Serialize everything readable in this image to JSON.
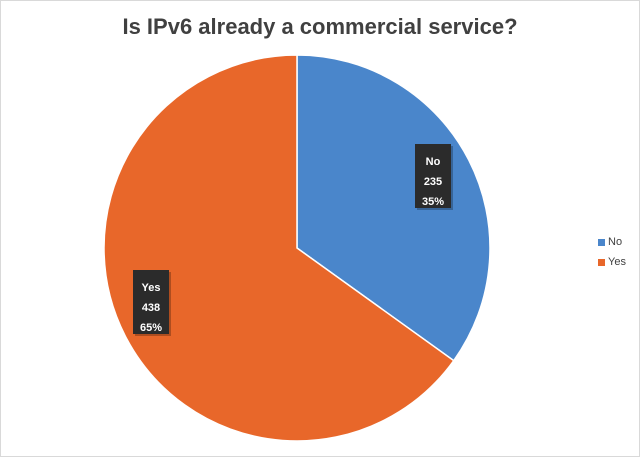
{
  "chart_data": {
    "type": "pie",
    "title": "Is IPv6 already a commercial service?",
    "slices": [
      {
        "label": "No",
        "value": 235,
        "percent": "35%",
        "color": "#4a86cb"
      },
      {
        "label": "Yes",
        "value": 438,
        "percent": "65%",
        "color": "#e8672a"
      }
    ],
    "legend_position": "right",
    "label_box_color": "#2b2b2b",
    "label_text_color": "#ffffff"
  },
  "legend": {
    "items": [
      {
        "label": "No",
        "color": "#4a86cb"
      },
      {
        "label": "Yes",
        "color": "#e8672a"
      }
    ]
  }
}
